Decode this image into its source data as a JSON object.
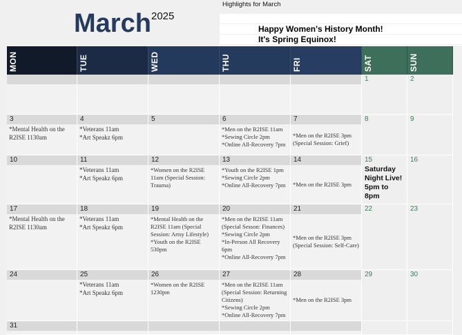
{
  "highlights": {
    "label": "Highlights for March",
    "lines": [
      "",
      "Happy Women's History Month!",
      "It's Spring Equinox!"
    ]
  },
  "title": {
    "month": "March",
    "year": "2025"
  },
  "colors": {
    "weekday_header": [
      "#101a28",
      "#1c2b45",
      "#243a5c",
      "#253b5e",
      "#273e62"
    ],
    "weekend_header": "#3e6f5a",
    "title": "#243b5e"
  },
  "days": [
    "MON",
    "TUE",
    "WED",
    "THU",
    "FRI",
    "SAT",
    "SUN"
  ],
  "weeks": [
    {
      "h": 58,
      "days": [
        {
          "date": "",
          "events": []
        },
        {
          "date": "",
          "events": []
        },
        {
          "date": "",
          "events": []
        },
        {
          "date": "",
          "events": []
        },
        {
          "date": "",
          "events": []
        },
        {
          "date": "1",
          "events": []
        },
        {
          "date": "2",
          "events": []
        }
      ]
    },
    {
      "h": 59,
      "days": [
        {
          "date": "3",
          "events": [
            "*Mental Health on the R2ISE 1130am"
          ]
        },
        {
          "date": "4",
          "events": [
            "*Veterans 11am",
            "*Art Speakz 6pm"
          ]
        },
        {
          "date": "5",
          "events": []
        },
        {
          "date": "6",
          "events": [
            "*Men on the R2ISE 11am",
            "*Sewing Circle 2pm",
            "*Online All-Recovery 7pm"
          ]
        },
        {
          "date": "7",
          "events": [
            "*Men on the R2ISE 3pm (Special Session: Grief)"
          ]
        },
        {
          "date": "8",
          "events": []
        },
        {
          "date": "9",
          "events": []
        }
      ]
    },
    {
      "h": 59,
      "days": [
        {
          "date": "10",
          "events": []
        },
        {
          "date": "11",
          "events": [
            "*Veterans 11am",
            "*Art Speakz 6pm"
          ]
        },
        {
          "date": "12",
          "events": [
            "*Women on the R2ISE 11am (Special Session: Trauma)"
          ]
        },
        {
          "date": "13",
          "events": [
            "*Youth on the R2ISE 1pm",
            "*Sewing Circle 2pm",
            "*Online All-Recovery 7pm"
          ]
        },
        {
          "date": "14",
          "events": [
            "*Men on the R2ISE 3pm"
          ]
        },
        {
          "date": "15",
          "events": [],
          "special": "Saturday Night Live! 5pm to 8pm"
        },
        {
          "date": "16",
          "events": []
        }
      ]
    },
    {
      "h": 95,
      "days": [
        {
          "date": "17",
          "events": [
            "*Mental Health on the R2ISE 1130am"
          ]
        },
        {
          "date": "18",
          "events": [
            "*Veterans 11am",
            "*Art Speakz 6pm"
          ]
        },
        {
          "date": "19",
          "events": [
            "*Mental Health on the R2ISE 11am (Special Session: Artsy Lifestyle)",
            "*Youth on the R2ISE 530pm"
          ]
        },
        {
          "date": "20",
          "events": [
            "*Men on the R2ISE 11am (Special Sesson: Finances)",
            "*Sewing Circle 2pm",
            "*In-Person All Recovery 6pm",
            "*Online All-Recovery 7pm"
          ]
        },
        {
          "date": "21",
          "events": [
            "*Men on the R2ISE 3pm (Special Session: Self-Care)"
          ]
        },
        {
          "date": "22",
          "events": []
        },
        {
          "date": "23",
          "events": []
        }
      ]
    },
    {
      "h": 70,
      "days": [
        {
          "date": "24",
          "events": []
        },
        {
          "date": "25",
          "events": [
            "*Veterans 11am",
            "*Art Speakz 6pm"
          ]
        },
        {
          "date": "26",
          "events": [
            "*Women on the R2ISE 1230pm"
          ]
        },
        {
          "date": "27",
          "events": [
            "*Men on the R2ISE 11am (Special Session: Returning Citizens)",
            "*Sewing Circle 2pm",
            "*Online All-Recovery 7pm"
          ]
        },
        {
          "date": "28",
          "events": [
            "*Men on the R2ISE 3pm"
          ]
        },
        {
          "date": "29",
          "events": []
        },
        {
          "date": "30",
          "events": []
        }
      ]
    },
    {
      "h": 20,
      "days": [
        {
          "date": "31",
          "events": []
        },
        {
          "date": "",
          "events": []
        },
        {
          "date": "",
          "events": []
        },
        {
          "date": "",
          "events": []
        },
        {
          "date": "",
          "events": []
        },
        {
          "date": "",
          "events": []
        },
        {
          "date": "",
          "events": []
        }
      ]
    }
  ]
}
